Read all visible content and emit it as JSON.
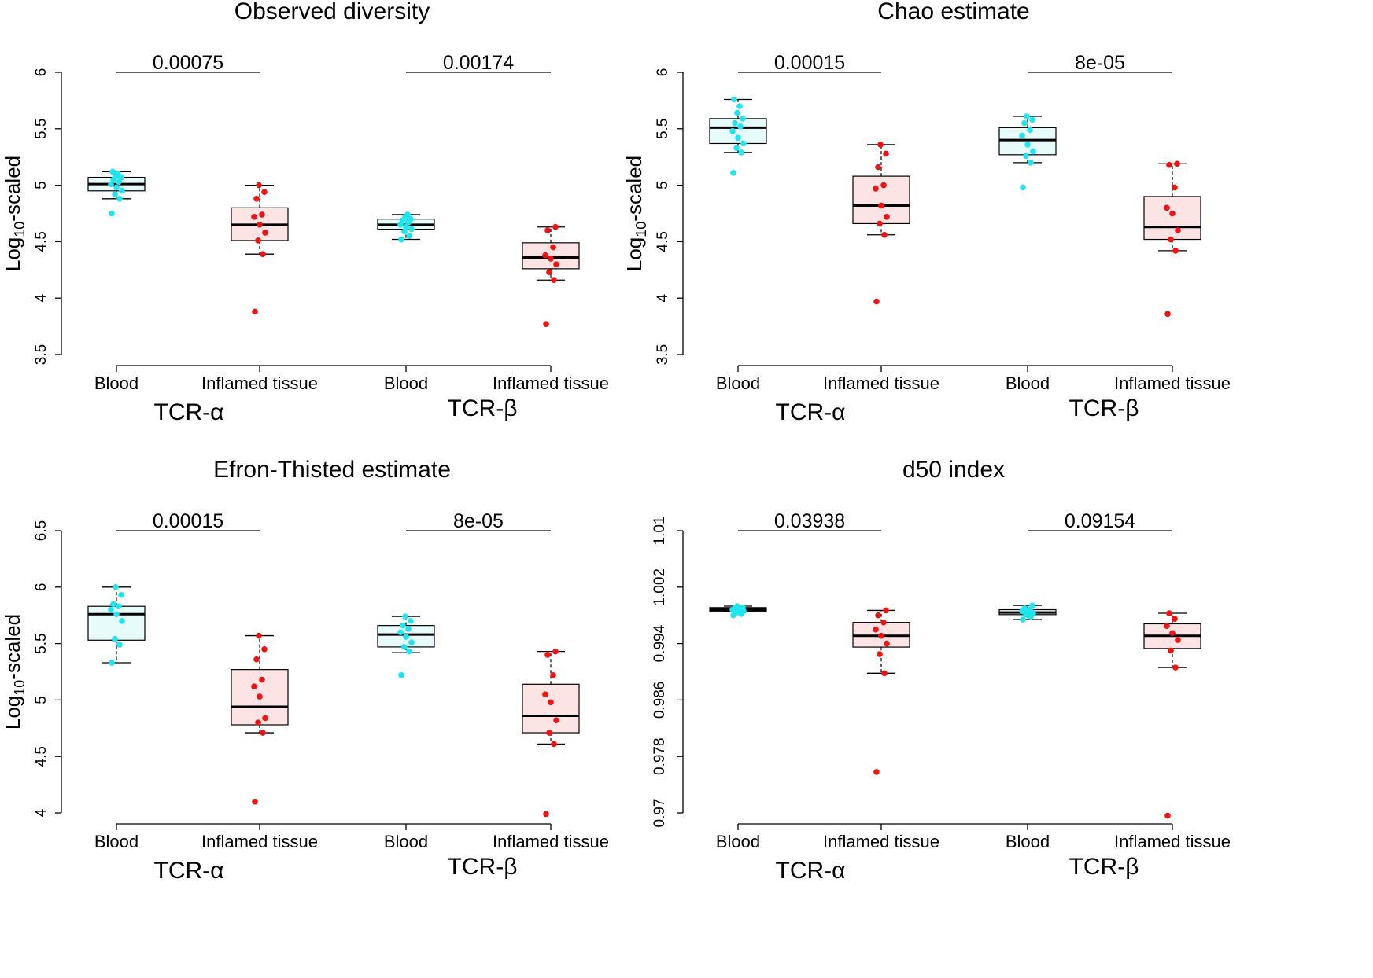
{
  "colors": {
    "blood_point": "#1ee6ef",
    "blood_fill": "#e8fbfb",
    "tissue_point": "#f21212",
    "tissue_fill": "#fde4e4",
    "line": "#000000"
  },
  "chart_data": [
    {
      "type": "box",
      "title": "Observed diversity",
      "ylabel_main": "Log",
      "ylabel_sub": "10",
      "ylabel_rest": "-scaled",
      "ylim": [
        3.5,
        6
      ],
      "yticks": [
        "3.5",
        "4",
        "4.5",
        "5",
        "5.5",
        "6"
      ],
      "categories": [
        "Blood",
        "Inflamed tissue",
        "Blood",
        "Inflamed tissue"
      ],
      "groups": [
        "TCR-α",
        "TCR-β"
      ],
      "pvalues": [
        "0.00075",
        "0.00174"
      ],
      "boxes": [
        {
          "q1": 4.95,
          "median": 5.01,
          "q3": 5.07,
          "whisker_low": 4.88,
          "whisker_high": 5.12,
          "points": [
            4.75,
            4.88,
            4.92,
            4.95,
            4.98,
            5.01,
            5.03,
            5.05,
            5.07,
            5.08,
            5.1,
            5.12
          ]
        },
        {
          "q1": 4.51,
          "median": 4.65,
          "q3": 4.8,
          "whisker_low": 4.39,
          "whisker_high": 5.0,
          "points": [
            3.88,
            4.39,
            4.51,
            4.58,
            4.65,
            4.72,
            4.74,
            4.88,
            4.94,
            5.0
          ]
        },
        {
          "q1": 4.61,
          "median": 4.65,
          "q3": 4.7,
          "whisker_low": 4.52,
          "whisker_high": 4.74,
          "points": [
            4.52,
            4.55,
            4.59,
            4.61,
            4.63,
            4.65,
            4.67,
            4.69,
            4.7,
            4.72,
            4.74
          ]
        },
        {
          "q1": 4.26,
          "median": 4.36,
          "q3": 4.49,
          "whisker_low": 4.16,
          "whisker_high": 4.63,
          "points": [
            3.77,
            4.16,
            4.23,
            4.3,
            4.35,
            4.38,
            4.45,
            4.6,
            4.63
          ]
        }
      ]
    },
    {
      "type": "box",
      "title": "Chao estimate",
      "ylabel_main": "Log",
      "ylabel_sub": "10",
      "ylabel_rest": "-scaled",
      "ylim": [
        3.5,
        6
      ],
      "yticks": [
        "3.5",
        "4",
        "4.5",
        "5",
        "5.5",
        "6"
      ],
      "categories": [
        "Blood",
        "Inflamed tissue",
        "Blood",
        "Inflamed tissue"
      ],
      "groups": [
        "TCR-α",
        "TCR-β"
      ],
      "pvalues": [
        "0.00015",
        "8e-05"
      ],
      "boxes": [
        {
          "q1": 5.37,
          "median": 5.51,
          "q3": 5.59,
          "whisker_low": 5.29,
          "whisker_high": 5.76,
          "points": [
            5.11,
            5.29,
            5.33,
            5.37,
            5.42,
            5.48,
            5.52,
            5.55,
            5.59,
            5.64,
            5.7,
            5.76
          ]
        },
        {
          "q1": 4.66,
          "median": 4.82,
          "q3": 5.08,
          "whisker_low": 4.56,
          "whisker_high": 5.36,
          "points": [
            3.97,
            4.56,
            4.66,
            4.72,
            4.82,
            4.97,
            5.0,
            5.16,
            5.28,
            5.36
          ]
        },
        {
          "q1": 5.27,
          "median": 5.4,
          "q3": 5.51,
          "whisker_low": 5.2,
          "whisker_high": 5.61,
          "points": [
            4.98,
            5.2,
            5.26,
            5.3,
            5.36,
            5.44,
            5.49,
            5.55,
            5.58,
            5.61
          ]
        },
        {
          "q1": 4.52,
          "median": 4.63,
          "q3": 4.9,
          "whisker_low": 4.42,
          "whisker_high": 5.19,
          "points": [
            3.86,
            4.42,
            4.52,
            4.6,
            4.75,
            4.8,
            4.98,
            5.18,
            5.19
          ]
        }
      ]
    },
    {
      "type": "box",
      "title": "Efron-Thisted estimate",
      "ylabel_main": "Log",
      "ylabel_sub": "10",
      "ylabel_rest": "-scaled",
      "ylim": [
        4,
        6.5
      ],
      "yticks": [
        "4",
        "4.5",
        "5",
        "5.5",
        "6",
        "6.5"
      ],
      "categories": [
        "Blood",
        "Inflamed tissue",
        "Blood",
        "Inflamed tissue"
      ],
      "groups": [
        "TCR-α",
        "TCR-β"
      ],
      "pvalues": [
        "0.00015",
        "8e-05"
      ],
      "boxes": [
        {
          "q1": 5.53,
          "median": 5.76,
          "q3": 5.83,
          "whisker_low": 5.33,
          "whisker_high": 6.0,
          "points": [
            5.33,
            5.49,
            5.54,
            5.7,
            5.76,
            5.8,
            5.83,
            5.85,
            5.93,
            6.0
          ]
        },
        {
          "q1": 4.78,
          "median": 4.94,
          "q3": 5.27,
          "whisker_low": 4.71,
          "whisker_high": 5.57,
          "points": [
            4.1,
            4.71,
            4.8,
            4.84,
            5.03,
            5.12,
            5.18,
            5.36,
            5.45,
            5.57
          ]
        },
        {
          "q1": 5.47,
          "median": 5.58,
          "q3": 5.66,
          "whisker_low": 5.42,
          "whisker_high": 5.74,
          "points": [
            5.22,
            5.43,
            5.47,
            5.51,
            5.56,
            5.6,
            5.63,
            5.66,
            5.7,
            5.74
          ]
        },
        {
          "q1": 4.71,
          "median": 4.86,
          "q3": 5.14,
          "whisker_low": 4.61,
          "whisker_high": 5.43,
          "points": [
            3.99,
            4.61,
            4.71,
            4.82,
            4.98,
            5.05,
            5.22,
            5.4,
            5.43
          ]
        }
      ]
    },
    {
      "type": "box",
      "title": "d50 index",
      "ylabel_main": "",
      "ylabel_sub": "",
      "ylabel_rest": "",
      "ylim": [
        0.97,
        1.01
      ],
      "yticks": [
        "0.97",
        "0.978",
        "0.986",
        "0.994",
        "1.002",
        "1.01"
      ],
      "categories": [
        "Blood",
        "Inflamed tissue",
        "Blood",
        "Inflamed tissue"
      ],
      "groups": [
        "TCR-α",
        "TCR-β"
      ],
      "pvalues": [
        "0.03938",
        "0.09154"
      ],
      "boxes": [
        {
          "q1": 0.9986,
          "median": 0.9988,
          "q3": 0.9991,
          "whisker_low": 0.9986,
          "whisker_high": 0.9993,
          "points": [
            0.998,
            0.9982,
            0.9984,
            0.9986,
            0.9987,
            0.9988,
            0.9989,
            0.999,
            0.9991,
            0.9993
          ]
        },
        {
          "q1": 0.9935,
          "median": 0.9951,
          "q3": 0.997,
          "whisker_low": 0.9898,
          "whisker_high": 0.9987,
          "points": [
            0.9758,
            0.9898,
            0.9925,
            0.994,
            0.9951,
            0.996,
            0.997,
            0.998,
            0.9987
          ]
        },
        {
          "q1": 0.9981,
          "median": 0.9984,
          "q3": 0.9988,
          "whisker_low": 0.9974,
          "whisker_high": 0.9994,
          "points": [
            0.9974,
            0.9978,
            0.9981,
            0.9983,
            0.9985,
            0.9986,
            0.9988,
            0.999,
            0.9994
          ]
        },
        {
          "q1": 0.9933,
          "median": 0.9951,
          "q3": 0.9968,
          "whisker_low": 0.9906,
          "whisker_high": 0.9983,
          "points": [
            0.9696,
            0.9906,
            0.993,
            0.9945,
            0.9955,
            0.9965,
            0.9975,
            0.9983
          ]
        }
      ]
    }
  ]
}
